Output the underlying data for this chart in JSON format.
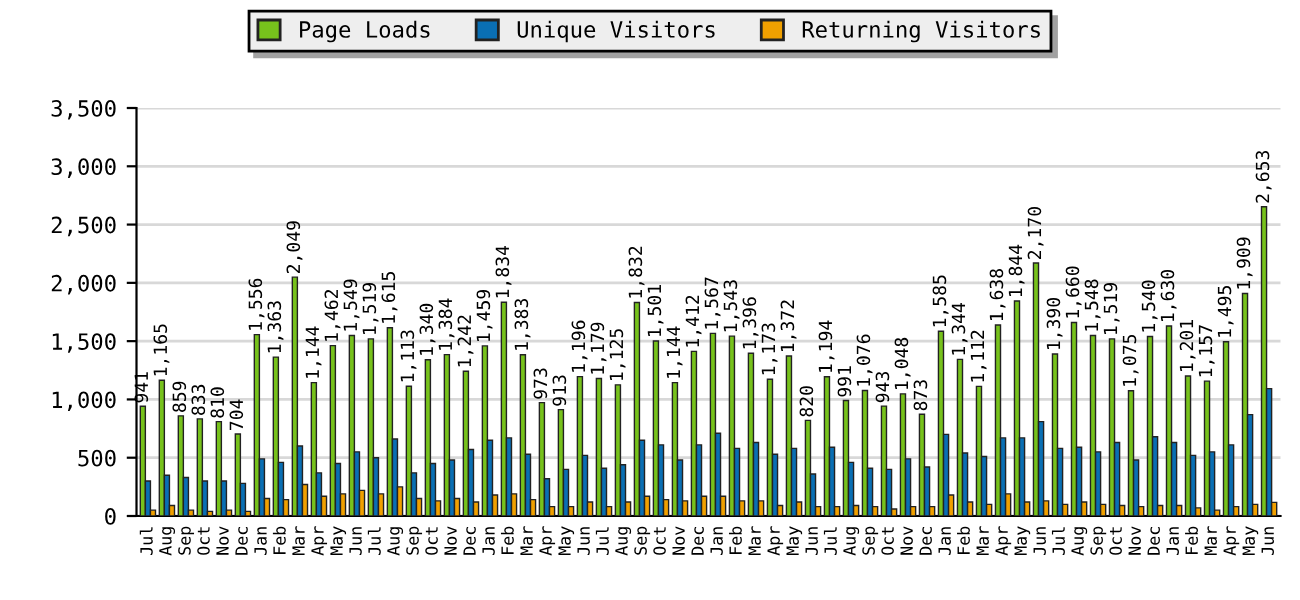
{
  "chart_data": {
    "type": "bar",
    "categories": [
      "Jul",
      "Aug",
      "Sep",
      "Oct",
      "Nov",
      "Dec",
      "Jan",
      "Feb",
      "Mar",
      "Apr",
      "May",
      "Jun",
      "Jul",
      "Aug",
      "Sep",
      "Oct",
      "Nov",
      "Dec",
      "Jan",
      "Feb",
      "Mar",
      "Apr",
      "May",
      "Jun",
      "Jul",
      "Aug",
      "Sep",
      "Oct",
      "Nov",
      "Dec",
      "Jan",
      "Feb",
      "Mar",
      "Apr",
      "May",
      "Jun",
      "Jul",
      "Aug",
      "Sep",
      "Oct",
      "Nov",
      "Dec",
      "Jan",
      "Feb",
      "Mar",
      "Apr",
      "May",
      "Jun",
      "Jul",
      "Aug",
      "Sep",
      "Oct",
      "Nov",
      "Dec",
      "Jan",
      "Feb",
      "Mar",
      "Apr",
      "May",
      "Jun"
    ],
    "series": [
      {
        "name": "Page Loads",
        "color": "#77c21c",
        "values": [
          941,
          1165,
          859,
          833,
          810,
          704,
          1556,
          1363,
          2049,
          1144,
          1462,
          1549,
          1519,
          1615,
          1113,
          1340,
          1384,
          1242,
          1459,
          1834,
          1383,
          973,
          913,
          1196,
          1179,
          1125,
          1832,
          1501,
          1144,
          1412,
          1567,
          1543,
          1396,
          1173,
          1372,
          820,
          1194,
          991,
          1076,
          943,
          1048,
          873,
          1585,
          1344,
          1112,
          1638,
          1844,
          2170,
          1390,
          1660,
          1548,
          1519,
          1075,
          1540,
          1630,
          1201,
          1157,
          1495,
          1909,
          2653
        ],
        "value_labels": [
          "941",
          "1,165",
          "859",
          "833",
          "810",
          "704",
          "1,556",
          "1,363",
          "2,049",
          "1,144",
          "1,462",
          "1,549",
          "1,519",
          "1,615",
          "1,113",
          "1,340",
          "1,384",
          "1,242",
          "1,459",
          "1,834",
          "1,383",
          "973",
          "913",
          "1,196",
          "1,179",
          "1,125",
          "1,832",
          "1,501",
          "1,144",
          "1,412",
          "1,567",
          "1,543",
          "1,396",
          "1,173",
          "1,372",
          "820",
          "1,194",
          "991",
          "1,076",
          "943",
          "1,048",
          "873",
          "1,585",
          "1,344",
          "1,112",
          "1,638",
          "1,844",
          "2,170",
          "1,390",
          "1,660",
          "1,548",
          "1,519",
          "1,075",
          "1,540",
          "1,630",
          "1,201",
          "1,157",
          "1,495",
          "1,909",
          "2,653"
        ]
      },
      {
        "name": "Unique Visitors",
        "color": "#0a6fb4",
        "values": [
          300,
          350,
          330,
          300,
          300,
          280,
          490,
          460,
          600,
          370,
          450,
          550,
          500,
          660,
          370,
          450,
          480,
          570,
          650,
          670,
          530,
          320,
          400,
          520,
          410,
          440,
          650,
          610,
          480,
          610,
          710,
          580,
          630,
          530,
          580,
          360,
          590,
          460,
          410,
          400,
          490,
          420,
          700,
          540,
          510,
          670,
          670,
          810,
          580,
          590,
          550,
          630,
          480,
          680,
          630,
          520,
          550,
          610,
          870,
          1093
        ]
      },
      {
        "name": "Returning Visitors",
        "color": "#f0a000",
        "values": [
          50,
          90,
          50,
          40,
          50,
          40,
          150,
          140,
          270,
          170,
          190,
          220,
          190,
          250,
          150,
          130,
          150,
          120,
          180,
          190,
          140,
          80,
          80,
          120,
          80,
          120,
          170,
          140,
          130,
          170,
          170,
          130,
          130,
          90,
          120,
          80,
          80,
          90,
          80,
          60,
          80,
          80,
          180,
          120,
          100,
          190,
          120,
          130,
          100,
          120,
          100,
          90,
          80,
          90,
          90,
          70,
          50,
          80,
          100,
          117
        ]
      }
    ],
    "ylim": [
      0,
      3500
    ],
    "yticks": [
      {
        "value": 0,
        "label": "0"
      },
      {
        "value": 500,
        "label": "500"
      },
      {
        "value": 1000,
        "label": "1,000"
      },
      {
        "value": 1500,
        "label": "1,500"
      },
      {
        "value": 2000,
        "label": "2,000"
      },
      {
        "value": 2500,
        "label": "2,500"
      },
      {
        "value": 3000,
        "label": "3,000"
      },
      {
        "value": 3500,
        "label": "3,500"
      }
    ],
    "grid": "y",
    "legend": "top"
  }
}
